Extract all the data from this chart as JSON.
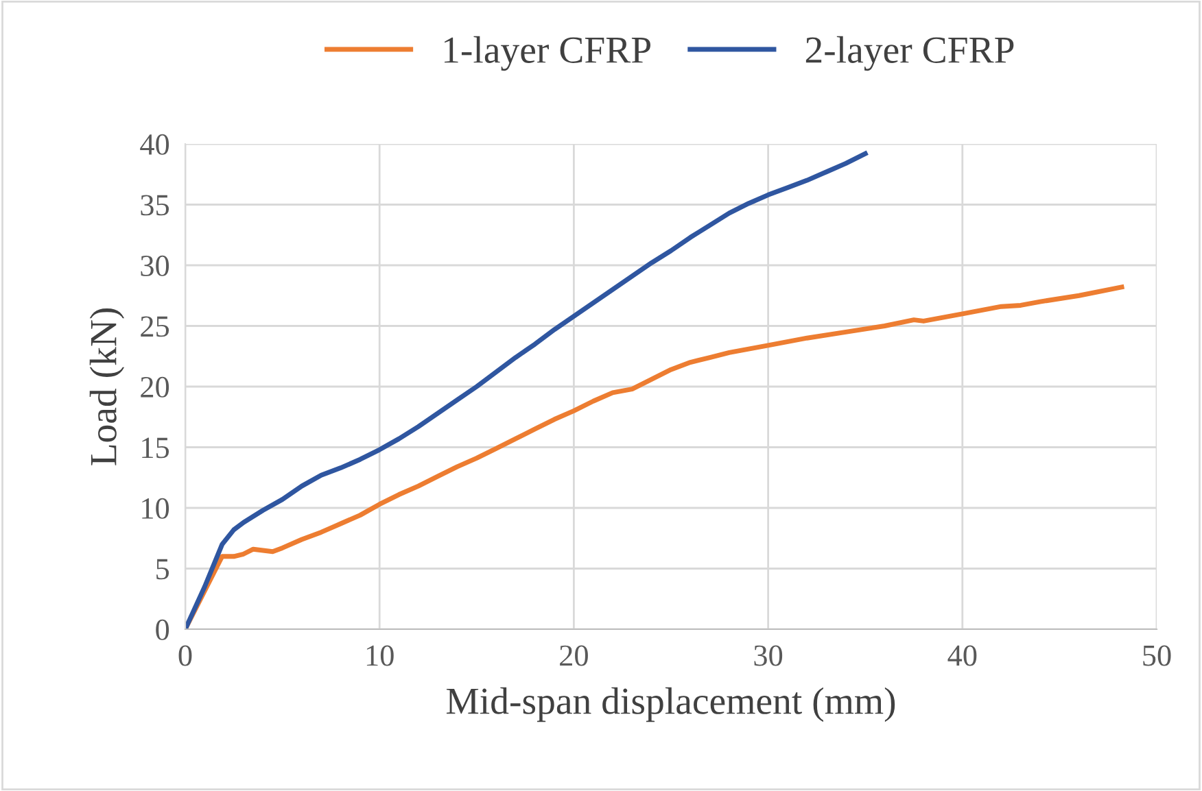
{
  "chart_data": {
    "type": "line",
    "xlabel": "Mid-span displacement (mm)",
    "ylabel": "Load (kN)",
    "xlim": [
      0,
      50
    ],
    "xticks": [
      0,
      10,
      20,
      30,
      40,
      50
    ],
    "ylim": [
      0,
      40
    ],
    "yticks": [
      0,
      5,
      10,
      15,
      20,
      25,
      30,
      35,
      40
    ],
    "grid": true,
    "legend": "top",
    "marker": "none",
    "line_style": "solid",
    "series": [
      {
        "name": "1-layer CFRP",
        "color": "#ed7d31",
        "x": [
          0,
          1.9,
          2.5,
          3,
          3.5,
          4,
          4.5,
          5,
          6,
          7,
          8,
          9,
          10,
          11,
          12,
          13,
          14,
          15,
          16,
          17,
          18,
          19,
          20,
          21,
          22,
          23,
          24,
          25,
          26,
          27,
          28,
          29,
          30,
          32,
          34,
          36,
          37.5,
          38,
          40,
          42,
          43,
          44,
          46,
          48.2
        ],
        "values": [
          0,
          6,
          6,
          6.2,
          6.6,
          6.5,
          6.4,
          6.7,
          7.4,
          8,
          8.7,
          9.4,
          10.3,
          11.1,
          11.8,
          12.6,
          13.4,
          14.1,
          14.9,
          15.7,
          16.5,
          17.3,
          18,
          18.8,
          19.5,
          19.8,
          20.6,
          21.4,
          22,
          22.4,
          22.8,
          23.1,
          23.4,
          24,
          24.5,
          25,
          25.5,
          25.4,
          26,
          26.6,
          26.7,
          27,
          27.5,
          28.2
        ]
      },
      {
        "name": "2-layer CFRP",
        "color": "#2f56a0",
        "x": [
          0,
          1,
          1.9,
          2.5,
          3,
          4,
          5,
          6,
          7,
          8,
          9,
          10,
          11,
          12,
          13,
          14,
          15,
          16,
          17,
          18,
          19,
          20,
          21,
          22,
          23,
          24,
          25,
          26,
          27,
          28,
          29,
          30,
          31,
          32,
          33,
          34,
          35
        ],
        "values": [
          0,
          3.5,
          7,
          8.2,
          8.8,
          9.8,
          10.7,
          11.8,
          12.7,
          13.3,
          14,
          14.8,
          15.7,
          16.7,
          17.8,
          18.9,
          20,
          21.2,
          22.4,
          23.5,
          24.7,
          25.8,
          26.9,
          28,
          29.1,
          30.2,
          31.2,
          32.3,
          33.3,
          34.3,
          35.1,
          35.8,
          36.4,
          37,
          37.7,
          38.4,
          39.2
        ]
      }
    ]
  }
}
